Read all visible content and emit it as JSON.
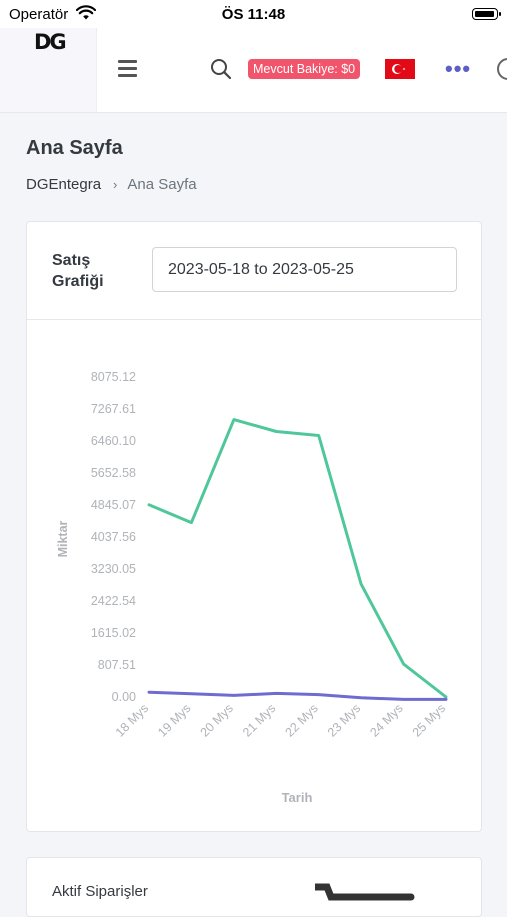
{
  "status": {
    "carrier": "Operatör",
    "time": "ÖS 11:48"
  },
  "topbar": {
    "logo": "DG",
    "balance": "Mevcut Bakiye: $0"
  },
  "page": {
    "title": "Ana Sayfa"
  },
  "breadcrumb": {
    "root": "DGEntegra",
    "separator": "›",
    "current": "Ana Sayfa"
  },
  "card": {
    "title": "Satış Grafiği",
    "date_range": "2023-05-18 to 2023-05-25"
  },
  "card2": {
    "title": "Aktif Siparişler"
  },
  "chart_data": {
    "type": "line",
    "categories": [
      "18 Mys",
      "19 Mys",
      "20 Mys",
      "21 Mys",
      "22 Mys",
      "23 Mys",
      "24 Mys",
      "25 Mys"
    ],
    "series": [
      {
        "color": "#4fc79a",
        "values": [
          4850,
          4400,
          7000,
          6700,
          6600,
          2850,
          830,
          0
        ]
      },
      {
        "color": "#6f6bd0",
        "values": [
          120,
          80,
          40,
          90,
          60,
          -20,
          -60,
          -60
        ]
      }
    ],
    "yticks": [
      "8075.12",
      "7267.61",
      "6460.10",
      "5652.58",
      "4845.07",
      "4037.56",
      "3230.05",
      "2422.54",
      "1615.02",
      "807.51",
      "0.00"
    ],
    "ylim": [
      0,
      8075.12
    ],
    "xlabel": "Tarih",
    "ylabel": "Miktar",
    "grid": false
  }
}
